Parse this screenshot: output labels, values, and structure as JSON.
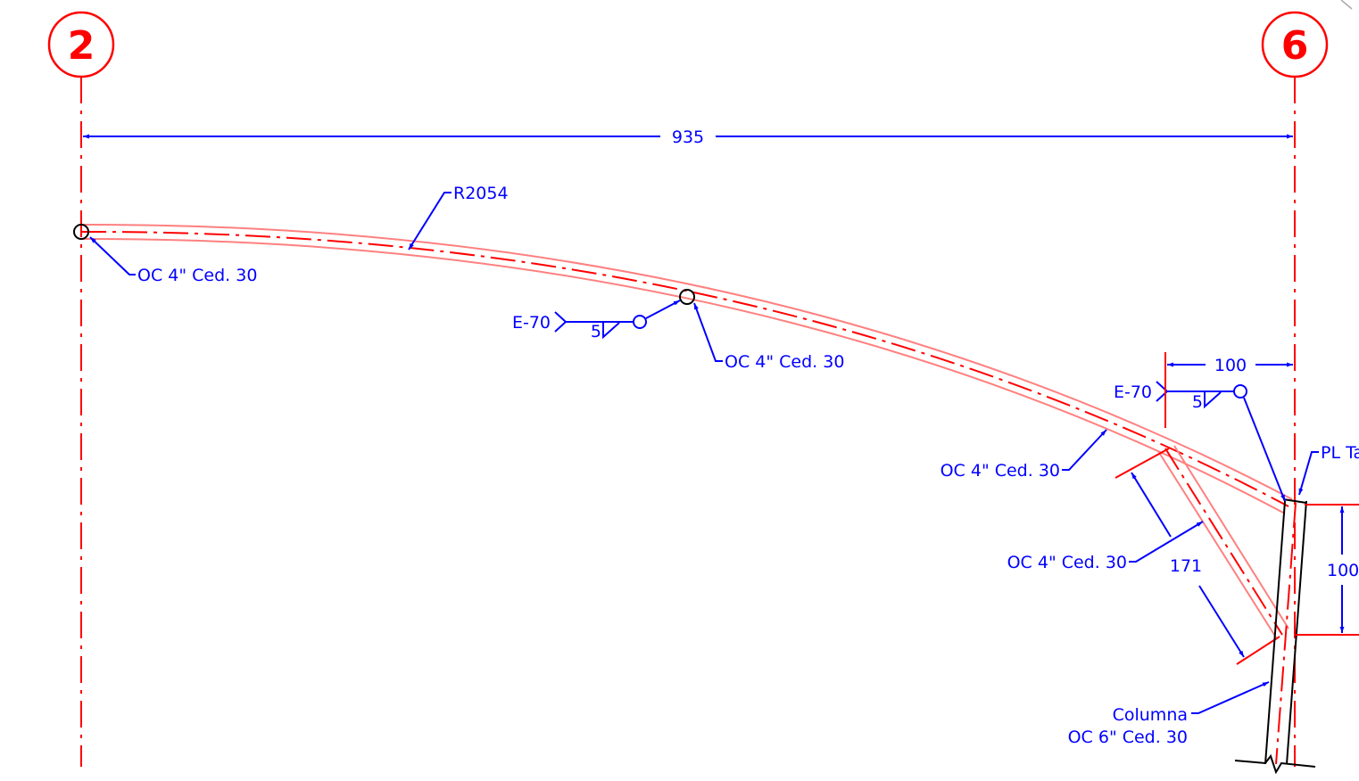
{
  "grid_labels": {
    "left": "2",
    "right": "6"
  },
  "dimensions": {
    "span": "935",
    "offset_top": "100",
    "vertical": "100",
    "brace_length": "171"
  },
  "callouts": {
    "radius": "R2054",
    "pipe_top_left": "OC 4\" Ced. 30",
    "pipe_mid": "OC 4\" Ced. 30",
    "pipe_right": "OC 4\" Ced. 30",
    "brace": "OC 4\" Ced. 30",
    "plate": "PL Ta",
    "column_line1": "Columna",
    "column_line2": "OC 6\" Ced. 30"
  },
  "welds": {
    "weld_1": {
      "electrode": "E-70",
      "size": "5"
    },
    "weld_2": {
      "electrode": "E-70",
      "size": "5"
    }
  },
  "colors": {
    "grid_red": "#ff0000",
    "pipe_pink": "#ff8080",
    "dimension_blue": "#0000ff",
    "steel_black": "#000000"
  }
}
